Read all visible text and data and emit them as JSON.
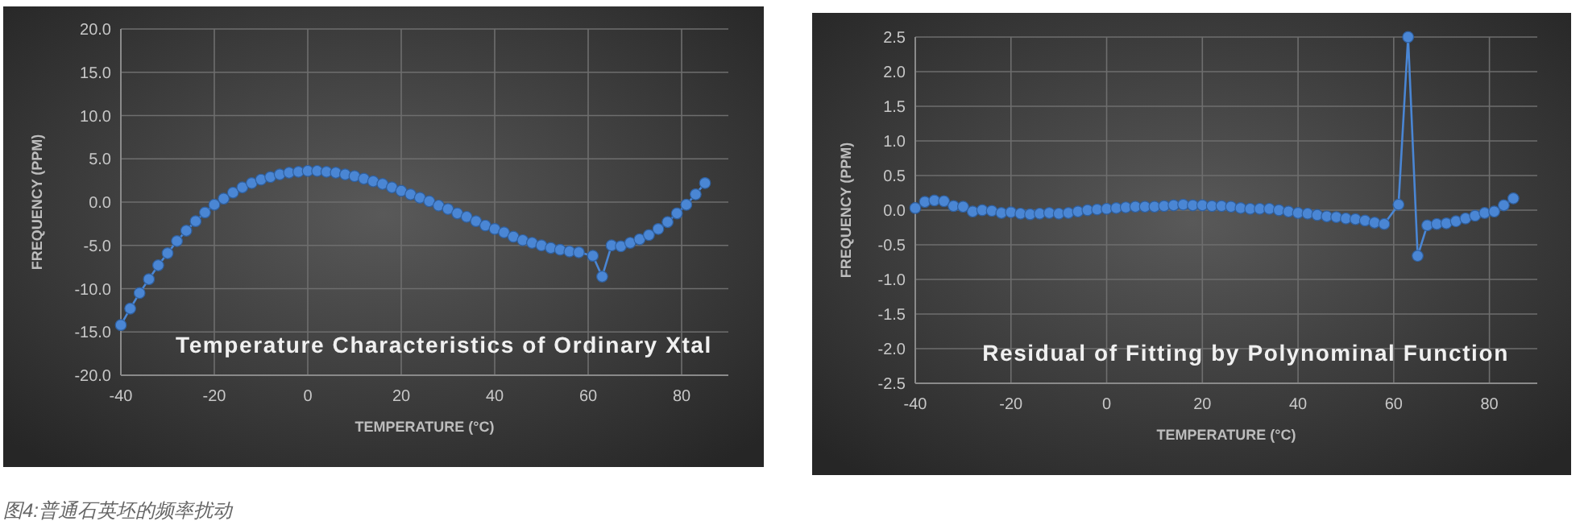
{
  "chart_data": [
    {
      "type": "line",
      "title": "Temperature Characteristics of Ordinary Xtal",
      "xlabel": "TEMPERATURE (°C)",
      "ylabel": "FREQUENCY (PPM)",
      "x": [
        -40,
        -38,
        -36,
        -34,
        -32,
        -30,
        -28,
        -26,
        -24,
        -22,
        -20,
        -18,
        -16,
        -14,
        -12,
        -10,
        -8,
        -6,
        -4,
        -2,
        0,
        2,
        4,
        6,
        8,
        10,
        12,
        14,
        16,
        18,
        20,
        22,
        24,
        26,
        28,
        30,
        32,
        34,
        36,
        38,
        40,
        42,
        44,
        46,
        48,
        50,
        52,
        54,
        56,
        58,
        61,
        63,
        65,
        67,
        69,
        71,
        73,
        75,
        77,
        79,
        81,
        83,
        85
      ],
      "series": [
        {
          "color": "#4a86d4",
          "values": [
            -14.2,
            -12.3,
            -10.5,
            -8.9,
            -7.3,
            -5.9,
            -4.5,
            -3.3,
            -2.2,
            -1.2,
            -0.3,
            0.4,
            1.1,
            1.7,
            2.2,
            2.6,
            2.9,
            3.2,
            3.4,
            3.5,
            3.6,
            3.6,
            3.5,
            3.4,
            3.2,
            3.0,
            2.7,
            2.4,
            2.1,
            1.7,
            1.3,
            0.9,
            0.5,
            0.1,
            -0.4,
            -0.8,
            -1.3,
            -1.7,
            -2.2,
            -2.7,
            -3.1,
            -3.5,
            -4.0,
            -4.4,
            -4.7,
            -5.0,
            -5.3,
            -5.5,
            -5.7,
            -5.8,
            -6.2,
            -8.6,
            -5.0,
            -5.1,
            -4.7,
            -4.3,
            -3.8,
            -3.1,
            -2.3,
            -1.3,
            -0.3,
            0.9,
            2.2
          ]
        }
      ],
      "xlim": [
        -40,
        90
      ],
      "ylim": [
        -20,
        20
      ],
      "xticks": [
        -40,
        -20,
        0,
        20,
        40,
        60,
        80
      ],
      "yticks": [
        {
          "value": -20,
          "label": "-20.0"
        },
        {
          "value": -15,
          "label": "-15.0"
        },
        {
          "value": -10,
          "label": "-10.0"
        },
        {
          "value": -5,
          "label": "-5.0"
        },
        {
          "value": 0,
          "label": "0.0"
        },
        {
          "value": 5,
          "label": "5.0"
        },
        {
          "value": 10,
          "label": "10.0"
        },
        {
          "value": 15,
          "label": "15.0"
        },
        {
          "value": 20,
          "label": "20.0"
        }
      ],
      "grid": true,
      "marker": "circle",
      "line_style": "solid",
      "annotations": [
        "图4:普通石英坯的频率扰动"
      ]
    },
    {
      "type": "line",
      "title": "Residual of Fitting by Polynominal Function",
      "xlabel": "TEMPERATURE (°C)",
      "ylabel": "FREQUENCY (PPM)",
      "x": [
        -40,
        -38,
        -36,
        -34,
        -32,
        -30,
        -28,
        -26,
        -24,
        -22,
        -20,
        -18,
        -16,
        -14,
        -12,
        -10,
        -8,
        -6,
        -4,
        -2,
        0,
        2,
        4,
        6,
        8,
        10,
        12,
        14,
        16,
        18,
        20,
        22,
        24,
        26,
        28,
        30,
        32,
        34,
        36,
        38,
        40,
        42,
        44,
        46,
        48,
        50,
        52,
        54,
        56,
        58,
        61,
        63,
        65,
        67,
        69,
        71,
        73,
        75,
        77,
        79,
        81,
        83,
        85
      ],
      "series": [
        {
          "color": "#4a86d4",
          "values": [
            0.03,
            0.12,
            0.14,
            0.13,
            0.06,
            0.05,
            -0.02,
            0.0,
            -0.01,
            -0.04,
            -0.03,
            -0.05,
            -0.06,
            -0.05,
            -0.04,
            -0.05,
            -0.04,
            -0.02,
            0.0,
            0.01,
            0.02,
            0.03,
            0.04,
            0.05,
            0.05,
            0.05,
            0.06,
            0.07,
            0.08,
            0.07,
            0.07,
            0.06,
            0.06,
            0.05,
            0.03,
            0.02,
            0.02,
            0.02,
            0.0,
            -0.02,
            -0.04,
            -0.05,
            -0.07,
            -0.09,
            -0.1,
            -0.12,
            -0.13,
            -0.15,
            -0.18,
            -0.2,
            0.08,
            2.5,
            -0.66,
            -0.22,
            -0.2,
            -0.19,
            -0.16,
            -0.12,
            -0.08,
            -0.04,
            -0.02,
            0.07,
            0.17
          ]
        }
      ],
      "xlim": [
        -40,
        90
      ],
      "ylim": [
        -2.5,
        2.5
      ],
      "xticks": [
        -40,
        -20,
        0,
        20,
        40,
        60,
        80
      ],
      "yticks": [
        {
          "value": -2.5,
          "label": "-2.5"
        },
        {
          "value": -2,
          "label": "-2.0"
        },
        {
          "value": -1.5,
          "label": "-1.5"
        },
        {
          "value": -1,
          "label": "-1.0"
        },
        {
          "value": -0.5,
          "label": "-0.5"
        },
        {
          "value": 0,
          "label": "0.0"
        },
        {
          "value": 0.5,
          "label": "0.5"
        },
        {
          "value": 1,
          "label": "1.0"
        },
        {
          "value": 1.5,
          "label": "1.5"
        },
        {
          "value": 2,
          "label": "2.0"
        },
        {
          "value": 2.5,
          "label": "2.5"
        }
      ],
      "grid": true,
      "marker": "circle",
      "line_style": "solid"
    }
  ]
}
